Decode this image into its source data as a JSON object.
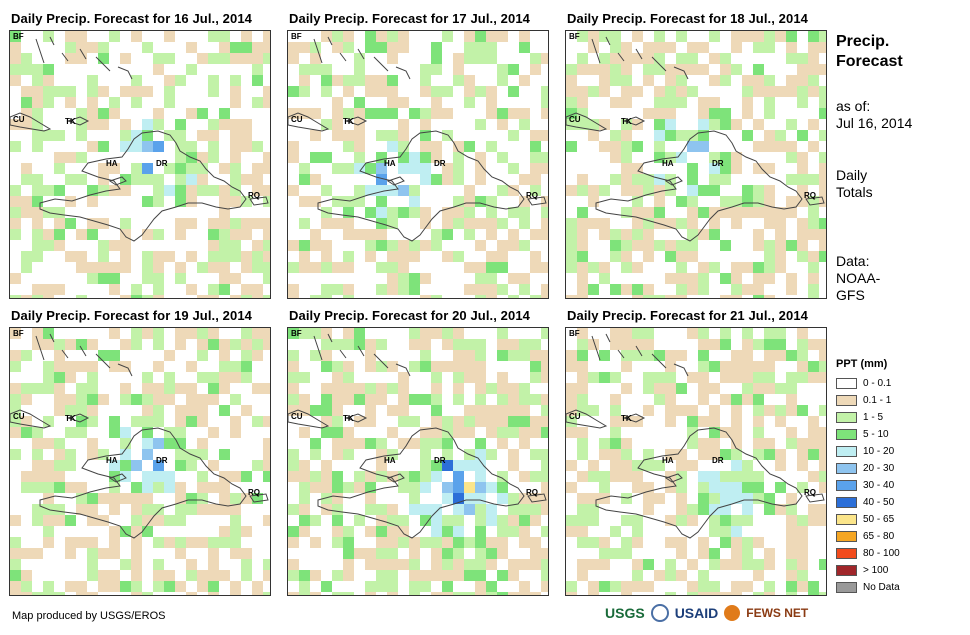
{
  "colors": {
    "land_outline": "#444444",
    "bins": [
      "#ffffff",
      "#eed9b8",
      "#c2f2a8",
      "#7ee37a",
      "#bfeef2",
      "#8ec4ef",
      "#5aa2eb",
      "#2c6fd8",
      "#fbe58a",
      "#f5a623",
      "#f24b1c",
      "#a0262a",
      "#999999"
    ]
  },
  "panels": [
    {
      "title": "Daily Precip. Forecast for 16 Jul., 2014"
    },
    {
      "title": "Daily Precip. Forecast for 17 Jul., 2014"
    },
    {
      "title": "Daily Precip. Forecast for 18 Jul., 2014"
    },
    {
      "title": "Daily Precip. Forecast for 19 Jul., 2014"
    },
    {
      "title": "Daily Precip. Forecast for 20 Jul., 2014"
    },
    {
      "title": "Daily Precip. Forecast for 21 Jul., 2014"
    }
  ],
  "map_labels": {
    "bf": "BF",
    "cu": "CU",
    "tk": "TK",
    "ha": "HA",
    "dr": "DR",
    "rq": "RQ"
  },
  "sidebar": {
    "title": "Precip.\nForecast",
    "as_of": "as of:\nJul 16, 2014",
    "totals": "Daily\nTotals",
    "source": "Data:\nNOAA-\nGFS"
  },
  "legend": {
    "title": "PPT (mm)",
    "items": [
      {
        "label": "0 - 0.1",
        "color": "#ffffff"
      },
      {
        "label": "0.1 - 1",
        "color": "#eed9b8"
      },
      {
        "label": "1 - 5",
        "color": "#c2f2a8"
      },
      {
        "label": "5 - 10",
        "color": "#7ee37a"
      },
      {
        "label": "10 - 20",
        "color": "#bfeef2"
      },
      {
        "label": "20 - 30",
        "color": "#8ec4ef"
      },
      {
        "label": "30 - 40",
        "color": "#5aa2eb"
      },
      {
        "label": "40 - 50",
        "color": "#2c6fd8"
      },
      {
        "label": "50 - 65",
        "color": "#fbe58a"
      },
      {
        "label": "65 - 80",
        "color": "#f5a623"
      },
      {
        "label": "80 - 100",
        "color": "#f24b1c"
      },
      {
        "label": "> 100",
        "color": "#a0262a"
      },
      {
        "label": "No Data",
        "color": "#999999"
      }
    ]
  },
  "credit": "Map produced by USGS/EROS",
  "logos": {
    "usgs": "USGS",
    "usaid": "USAID",
    "fewsnet": "FEWS NET"
  }
}
